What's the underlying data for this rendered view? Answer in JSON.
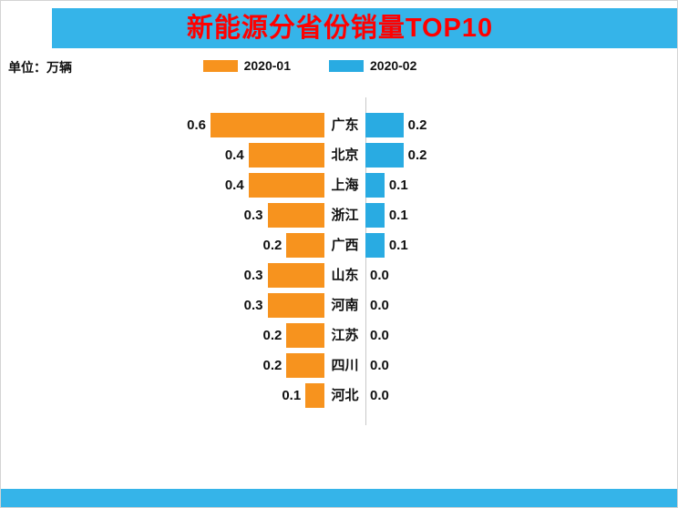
{
  "page": {
    "title": "新能源分省份销量TOP10",
    "unit_label": "单位：万辆",
    "theme": {
      "band_color": "#35B4E9",
      "title_color": "#FF0000",
      "series1_color": "#F7931E",
      "series2_color": "#29ABE2",
      "axis_color": "#C8C8C8"
    }
  },
  "legend": [
    {
      "name": "2020-01",
      "color": "#F7931E"
    },
    {
      "name": "2020-02",
      "color": "#29ABE2"
    }
  ],
  "chart_data": {
    "type": "bar",
    "subtype": "bidirectional_tornado",
    "title": "新能源分省份销量TOP10",
    "unit": "万辆",
    "legend_position": "top",
    "grid": false,
    "value_axis": {
      "min": 0,
      "max": 0.6
    },
    "categories": [
      "广东",
      "北京",
      "上海",
      "浙江",
      "广西",
      "山东",
      "河南",
      "江苏",
      "四川",
      "河北"
    ],
    "series": [
      {
        "name": "2020-01",
        "direction": "left",
        "color": "#F7931E",
        "values": [
          0.6,
          0.4,
          0.4,
          0.3,
          0.2,
          0.3,
          0.3,
          0.2,
          0.2,
          0.1
        ],
        "labels": [
          "0.6",
          "0.4",
          "0.4",
          "0.3",
          "0.2",
          "0.3",
          "0.3",
          "0.2",
          "0.2",
          "0.1"
        ]
      },
      {
        "name": "2020-02",
        "direction": "right",
        "color": "#29ABE2",
        "values": [
          0.2,
          0.2,
          0.1,
          0.1,
          0.1,
          0.0,
          0.0,
          0.0,
          0.0,
          0.0
        ],
        "labels": [
          "0.2",
          "0.2",
          "0.1",
          "0.1",
          "0.1",
          "0.0",
          "0.0",
          "0.0",
          "0.0",
          "0.0"
        ]
      }
    ]
  }
}
